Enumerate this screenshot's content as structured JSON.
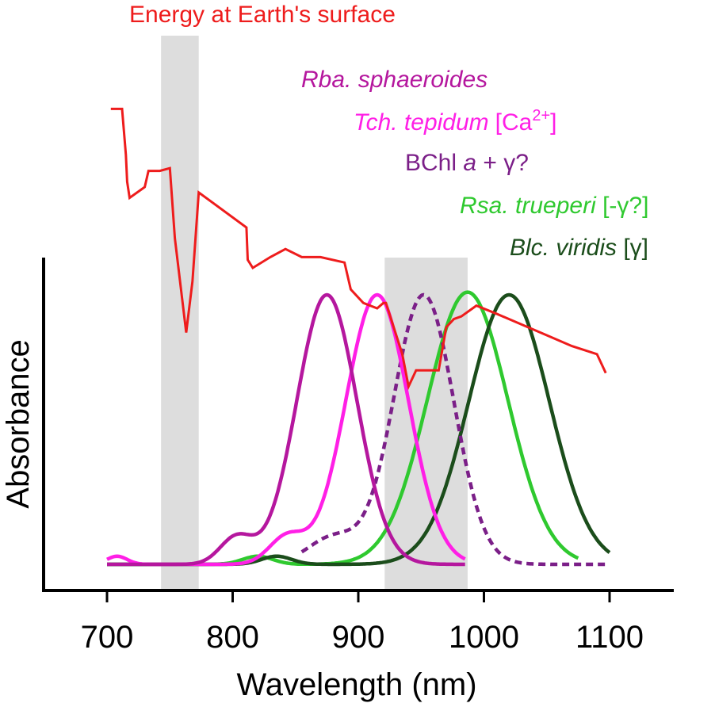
{
  "chart_data": {
    "type": "line",
    "xlabel": "Wavelength (nm)",
    "ylabel": "Absorbance",
    "xlim": [
      650,
      1140
    ],
    "x_ticks": [
      "700",
      "800",
      "900",
      "1000",
      "1100"
    ],
    "shaded_regions": [
      [
        743,
        773
      ],
      [
        921,
        987
      ]
    ],
    "colors": {
      "solar": "#ee1c1c",
      "rba": "#b5179e",
      "tch": "#ff1fe6",
      "bchl": "#7b1f88",
      "rsa": "#2fc92f",
      "blc": "#1b4d1b",
      "shade": "#dddddd"
    },
    "series": [
      {
        "name": "Energy at Earth's surface",
        "key": "solar",
        "style": "solid",
        "points": [
          [
            703,
            1.69
          ],
          [
            712,
            1.69
          ],
          [
            715,
            1.52
          ],
          [
            716,
            1.42
          ],
          [
            718,
            1.36
          ],
          [
            730,
            1.4
          ],
          [
            733,
            1.46
          ],
          [
            742,
            1.46
          ],
          [
            750,
            1.47
          ],
          [
            754,
            1.21
          ],
          [
            763,
            0.86
          ],
          [
            768,
            1.05
          ],
          [
            773,
            1.38
          ],
          [
            811,
            1.25
          ],
          [
            812,
            1.13
          ],
          [
            816,
            1.1
          ],
          [
            830,
            1.14
          ],
          [
            842,
            1.17
          ],
          [
            855,
            1.14
          ],
          [
            870,
            1.14
          ],
          [
            889,
            1.12
          ],
          [
            894,
            1.02
          ],
          [
            904,
            0.97
          ],
          [
            915,
            0.95
          ],
          [
            920,
            0.97
          ],
          [
            922,
            0.97
          ],
          [
            935,
            0.78
          ],
          [
            940,
            0.66
          ],
          [
            946,
            0.72
          ],
          [
            956,
            0.72
          ],
          [
            964,
            0.72
          ],
          [
            967,
            0.8
          ],
          [
            970,
            0.88
          ],
          [
            976,
            0.91
          ],
          [
            982,
            0.92
          ],
          [
            994,
            0.96
          ],
          [
            1010,
            0.93
          ],
          [
            1030,
            0.89
          ],
          [
            1050,
            0.85
          ],
          [
            1070,
            0.81
          ],
          [
            1090,
            0.78
          ],
          [
            1097,
            0.71
          ]
        ]
      },
      {
        "name": "Rba. sphaeroides",
        "key": "rba",
        "style": "solid",
        "peak": 875,
        "width": 24,
        "height": 1.0,
        "bumps": [
          [
            803,
            13,
            0.1
          ]
        ],
        "range": [
          700,
          985
        ]
      },
      {
        "name": "Tch. tepidum [Ca2+]",
        "key": "tch",
        "style": "solid",
        "peak": 915,
        "width": 25,
        "height": 1.0,
        "bumps": [
          [
            843,
            14,
            0.1
          ],
          [
            708,
            8,
            0.03
          ]
        ],
        "range": [
          700,
          985
        ]
      },
      {
        "name": "BChl a + γ?",
        "key": "bchl",
        "style": "dashed",
        "peak": 952,
        "width": 24,
        "height": 1.0,
        "bumps": [
          [
            880,
            20,
            0.1
          ]
        ],
        "range": [
          855,
          1100
        ]
      },
      {
        "name": "Rsa. trueperi [-γ?]",
        "key": "rsa",
        "style": "solid",
        "peak": 987,
        "width": 32,
        "height": 1.01,
        "bumps": [
          [
            820,
            12,
            0.03
          ]
        ],
        "range": [
          700,
          1075
        ]
      },
      {
        "name": "Blc. viridis [γ]",
        "key": "blc",
        "style": "solid",
        "peak": 1020,
        "width": 32,
        "height": 1.0,
        "bumps": [
          [
            835,
            12,
            0.03
          ]
        ],
        "range": [
          700,
          1100
        ]
      }
    ]
  },
  "legend": {
    "solar": "Energy at Earth's surface",
    "rba": "Rba. sphaeroides",
    "tch_name": "Tch. tepidum",
    "tch_ion": "[Ca",
    "tch_sup": "2+",
    "tch_close": "]",
    "bchl_a": "BChl ",
    "bchl_b": "a",
    "bchl_c": " + γ?",
    "rsa_name": "Rsa. trueperi",
    "rsa_tag": " [-γ?]",
    "blc_name": "Blc. viridis",
    "blc_tag": " [γ]"
  }
}
